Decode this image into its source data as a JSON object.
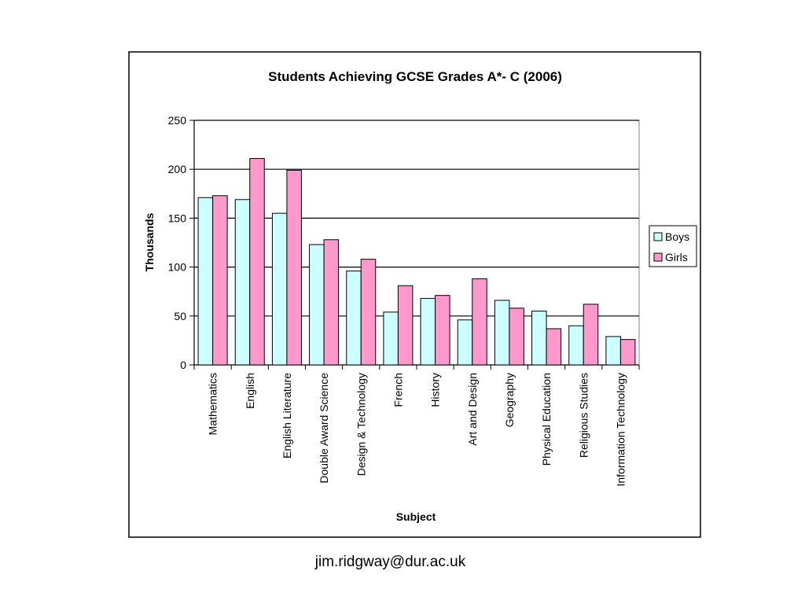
{
  "footer": {
    "email": "jim.ridgway@dur.ac.uk"
  },
  "chart_data": {
    "type": "bar",
    "title": "Students Achieving GCSE Grades A*- C (2006)",
    "xlabel": "Subject",
    "ylabel": "Thousands",
    "ylim": [
      0,
      250
    ],
    "yticks": [
      0,
      50,
      100,
      150,
      200,
      250
    ],
    "grid": true,
    "legend_position": "right",
    "categories": [
      "Mathematics",
      "English",
      "English Literature",
      "Double Award Science",
      "Design & Technology",
      "French",
      "History",
      "Art and Design",
      "Geography",
      "Physical Education",
      "Religious Studies",
      "Information Technology"
    ],
    "series": [
      {
        "name": "Boys",
        "color": "#ccffff",
        "values": [
          171,
          169,
          155,
          123,
          96,
          54,
          68,
          46,
          66,
          55,
          40,
          29
        ]
      },
      {
        "name": "Girls",
        "color": "#ff99cc",
        "values": [
          173,
          211,
          199,
          128,
          108,
          81,
          71,
          88,
          58,
          37,
          62,
          26
        ]
      }
    ]
  }
}
